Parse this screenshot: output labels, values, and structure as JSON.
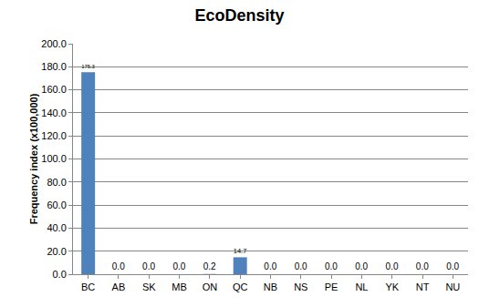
{
  "chart_data": {
    "type": "bar",
    "title": "EcoDensity",
    "y_label": "Frequency index (x100,000)",
    "categories": [
      "BC",
      "AB",
      "SK",
      "MB",
      "ON",
      "QC",
      "NB",
      "NS",
      "PE",
      "NL",
      "YK",
      "NT",
      "NU"
    ],
    "values": [
      175.3,
      0,
      0,
      0,
      0.2,
      14.7,
      0,
      0,
      0,
      0,
      0,
      0,
      0
    ],
    "value_labels": [
      "175.3",
      "0.0",
      "0.0",
      "0.0",
      "0.2",
      "14.7",
      "0.0",
      "0.0",
      "0.0",
      "0.0",
      "0.0",
      "0.0",
      "0.0"
    ],
    "data_labels": true,
    "color": "#4f81bd",
    "ylim": [
      0,
      200
    ],
    "yticks": [
      {
        "value": 0,
        "label": "0.0"
      },
      {
        "value": 20,
        "label": "20.0"
      },
      {
        "value": 40,
        "label": "40.0"
      },
      {
        "value": 60,
        "label": "60.0"
      },
      {
        "value": 80,
        "label": "80.0"
      },
      {
        "value": 100,
        "label": "100.0"
      },
      {
        "value": 120,
        "label": "120.0"
      },
      {
        "value": 140,
        "label": "140.0"
      },
      {
        "value": 160,
        "label": "160.0"
      },
      {
        "value": 180,
        "label": "180.0"
      },
      {
        "value": 200,
        "label": "200.0"
      }
    ],
    "grid": true
  }
}
